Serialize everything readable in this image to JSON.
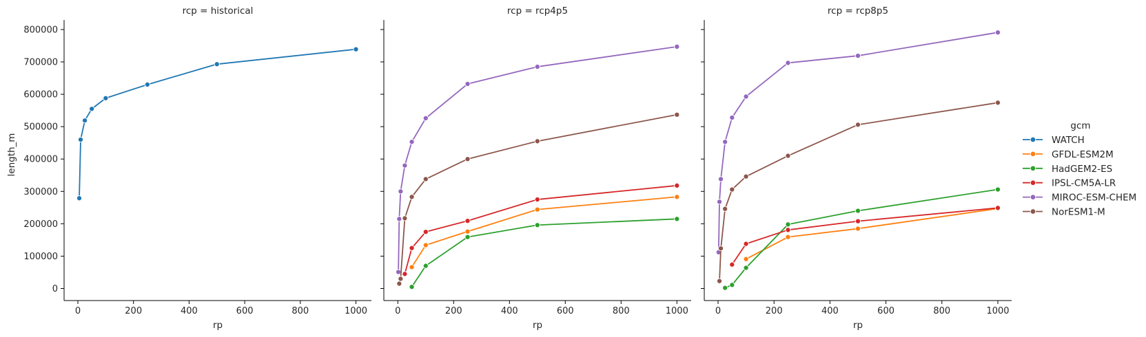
{
  "chart_data": {
    "type": "line",
    "title": "",
    "facet_variable": "rcp",
    "xlabel": "rp",
    "ylabel": "length_m",
    "xlim": [
      -50,
      1050
    ],
    "ylim": [
      -35000,
      830000
    ],
    "x_ticks": [
      0,
      200,
      400,
      600,
      800,
      1000
    ],
    "y_ticks": [
      0,
      100000,
      200000,
      300000,
      400000,
      500000,
      600000,
      700000,
      800000
    ],
    "grid": false,
    "legend": {
      "title": "gcm",
      "position": "right",
      "entries": [
        "WATCH",
        "GFDL-ESM2M",
        "HadGEM2-ES",
        "IPSL-CM5A-LR",
        "MIROC-ESM-CHEM",
        "NorESM1-M"
      ]
    },
    "colors": {
      "WATCH": "#1f77b4",
      "GFDL-ESM2M": "#ff7f0e",
      "HadGEM2-ES": "#2ca02c",
      "IPSL-CM5A-LR": "#d62728",
      "MIROC-ESM-CHEM": "#9467bd",
      "NorESM1-M": "#8c564b"
    },
    "facets": [
      {
        "title": "rcp = historical",
        "series": [
          {
            "name": "WATCH",
            "x": [
              5,
              10,
              25,
              50,
              100,
              250,
              500,
              1000
            ],
            "y": [
              279000,
              460000,
              519000,
              555000,
              588000,
              630000,
              693000,
              739000
            ]
          }
        ]
      },
      {
        "title": "rcp = rcp4p5",
        "series": [
          {
            "name": "GFDL-ESM2M",
            "x": [
              50,
              100,
              250,
              500,
              1000
            ],
            "y": [
              66000,
              134000,
              176000,
              244000,
              283000
            ]
          },
          {
            "name": "HadGEM2-ES",
            "x": [
              50,
              100,
              250,
              500,
              1000
            ],
            "y": [
              5000,
              70000,
              159000,
              196000,
              215000
            ]
          },
          {
            "name": "IPSL-CM5A-LR",
            "x": [
              25,
              50,
              100,
              250,
              500,
              1000
            ],
            "y": [
              45000,
              125000,
              175000,
              209000,
              275000,
              318000
            ]
          },
          {
            "name": "MIROC-ESM-CHEM",
            "x": [
              2,
              5,
              10,
              25,
              50,
              100,
              250,
              500,
              1000
            ],
            "y": [
              51000,
              215000,
              300000,
              380000,
              453000,
              526000,
              632000,
              685000,
              747000
            ]
          },
          {
            "name": "NorESM1-M",
            "x": [
              5,
              10,
              25,
              50,
              100,
              250,
              500,
              1000
            ],
            "y": [
              15000,
              30000,
              217000,
              283000,
              338000,
              400000,
              455000,
              537000
            ]
          }
        ]
      },
      {
        "title": "rcp = rcp8p5",
        "series": [
          {
            "name": "GFDL-ESM2M",
            "x": [
              100,
              250,
              500,
              1000
            ],
            "y": [
              91000,
              159000,
              185000,
              247000
            ]
          },
          {
            "name": "HadGEM2-ES",
            "x": [
              25,
              50,
              100,
              250,
              500,
              1000
            ],
            "y": [
              2000,
              11000,
              64000,
              198000,
              240000,
              306000
            ]
          },
          {
            "name": "IPSL-CM5A-LR",
            "x": [
              50,
              100,
              250,
              500,
              1000
            ],
            "y": [
              74000,
              138000,
              181000,
              208000,
              249000
            ]
          },
          {
            "name": "MIROC-ESM-CHEM",
            "x": [
              2,
              5,
              10,
              25,
              50,
              100,
              250,
              500,
              1000
            ],
            "y": [
              112000,
              268000,
              338000,
              453000,
              528000,
              593000,
              697000,
              719000,
              791000
            ]
          },
          {
            "name": "NorESM1-M",
            "x": [
              5,
              10,
              25,
              50,
              100,
              250,
              500,
              1000
            ],
            "y": [
              23000,
              124000,
              246000,
              306000,
              346000,
              410000,
              506000,
              574000
            ]
          }
        ]
      }
    ]
  }
}
